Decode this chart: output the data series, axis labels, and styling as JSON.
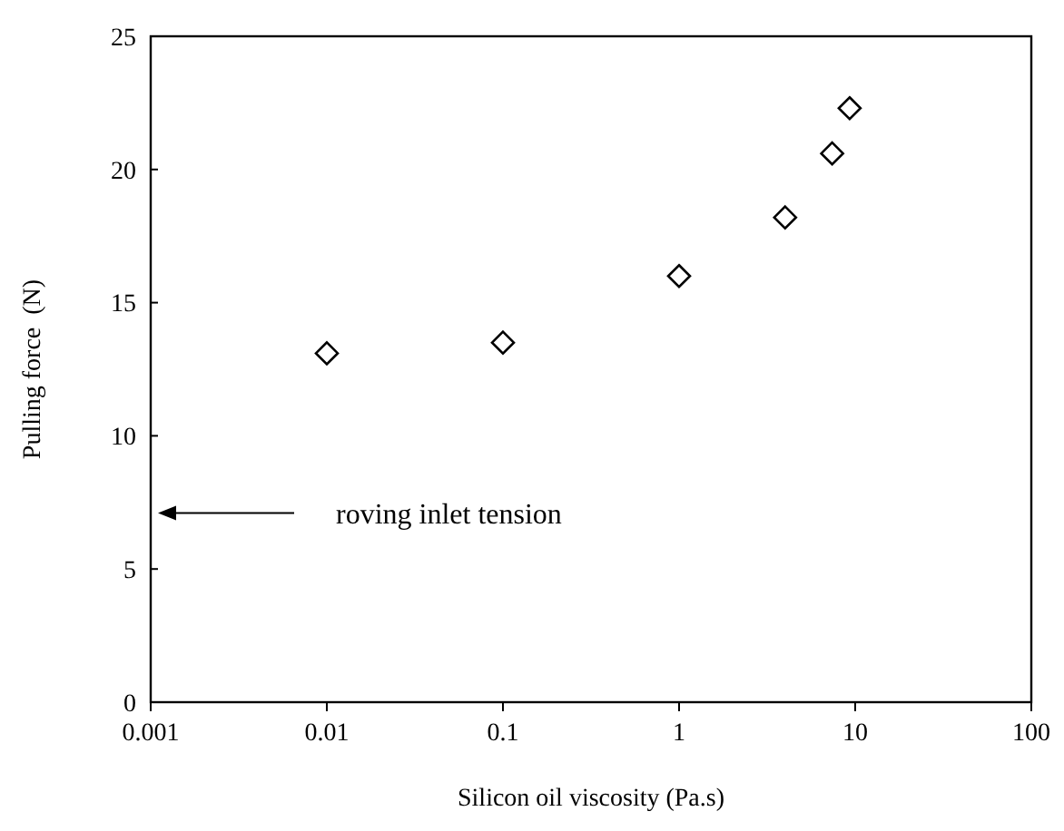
{
  "chart_data": {
    "type": "scatter",
    "xlabel": "Silicon oil viscosity (Pa.s)",
    "ylabel": "Pulling force  (N)",
    "x": [
      0.01,
      0.1,
      1,
      4,
      7.4,
      9.3
    ],
    "series": [
      {
        "color": "#000000",
        "values": [
          13.1,
          13.5,
          16.0,
          18.2,
          20.6,
          22.3
        ]
      }
    ],
    "log": "x",
    "marker": "diamond",
    "xlim": [
      0.001,
      100
    ],
    "xticks": [
      0.001,
      0.01,
      0.1,
      1,
      10,
      100
    ],
    "ylim": [
      0,
      25
    ],
    "yticks": [
      0,
      5,
      10,
      15,
      20,
      25
    ],
    "annotations": [
      "roving inlet tension"
    ]
  }
}
